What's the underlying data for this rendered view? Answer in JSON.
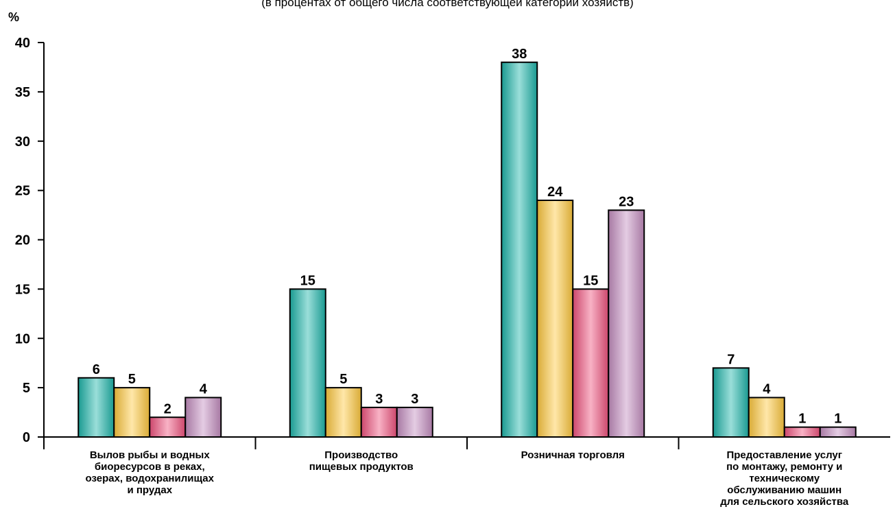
{
  "chart_data": {
    "type": "bar",
    "subtitle": "(в процентах от общего числа соответствующей категории хозяйств)",
    "ylabel": "%",
    "ylim": [
      0,
      40
    ],
    "yticks": [
      "0",
      "5",
      "10",
      "15",
      "20",
      "25",
      "30",
      "35",
      "40"
    ],
    "categories": [
      "Вылов рыбы и водных\nбиоресурсов в реках,\nозерах, водохранилищах\nи прудах",
      "Производство\nпищевых продуктов",
      "Розничная торговля",
      "Предоставление услуг\nпо монтажу, ремонту и\nтехническому\nобслуживанию машин\nдля сельского хозяйства"
    ],
    "series": [
      {
        "values": [
          6,
          15,
          38,
          7
        ],
        "color": "#1fb5aa"
      },
      {
        "values": [
          5,
          5,
          24,
          4
        ],
        "color": "#ffc93f"
      },
      {
        "values": [
          2,
          3,
          15,
          1
        ],
        "color": "#f0537f"
      },
      {
        "values": [
          4,
          3,
          23,
          1
        ],
        "color": "#c48ec0"
      }
    ],
    "grid": false,
    "legend": "none"
  }
}
